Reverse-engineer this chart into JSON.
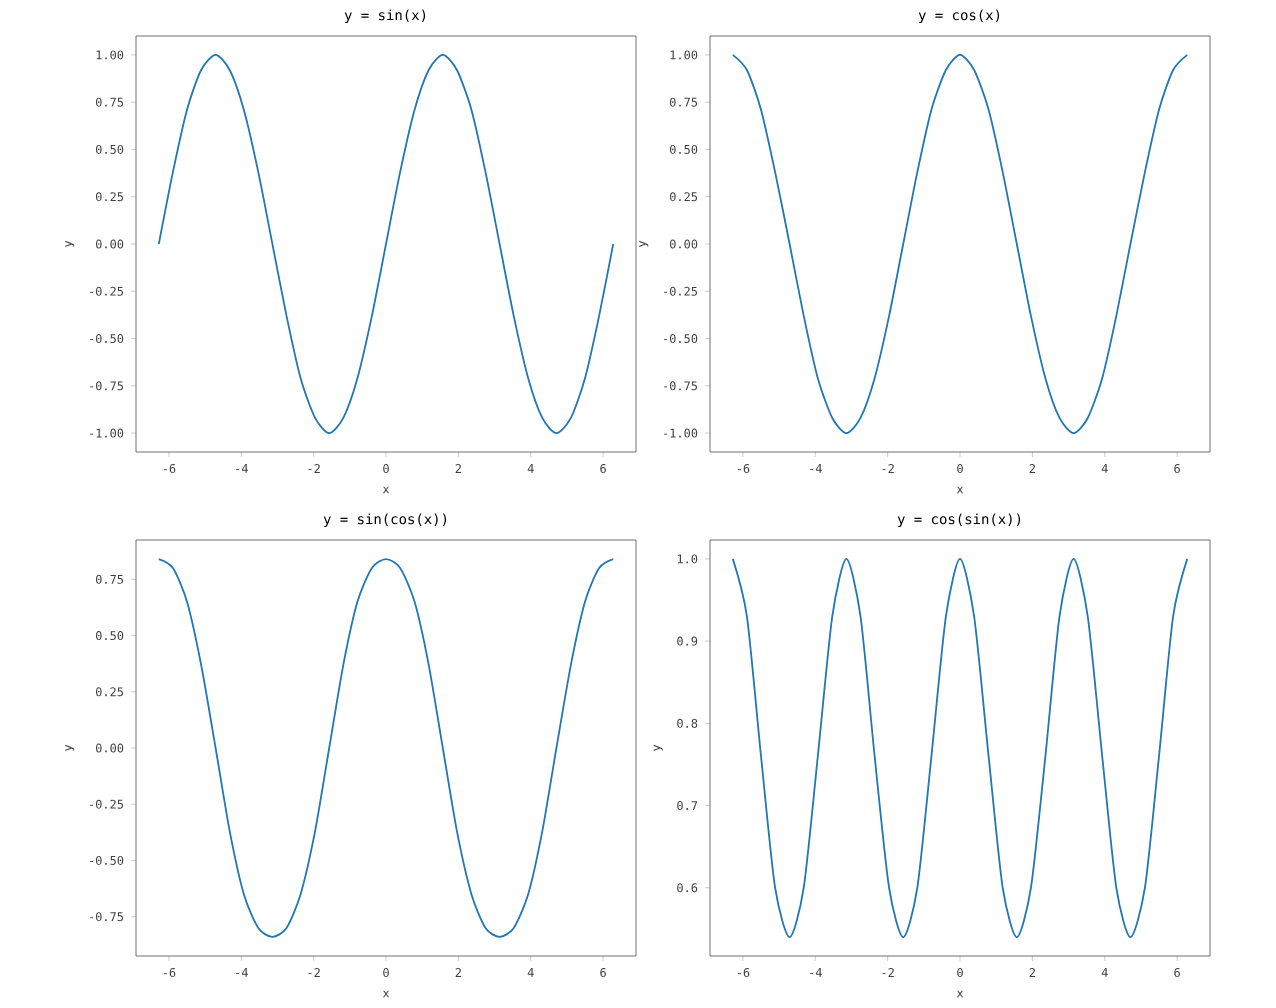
{
  "chart_data": [
    {
      "type": "line",
      "title": "y = sin(x)",
      "xlabel": "x",
      "ylabel": "y",
      "x": [
        -6.28,
        -5.89,
        -5.5,
        -5.11,
        -4.71,
        -4.32,
        -3.93,
        -3.53,
        -3.14,
        -2.75,
        -2.36,
        -1.96,
        -1.57,
        -1.18,
        -0.79,
        -0.39,
        0,
        0.39,
        0.79,
        1.18,
        1.57,
        1.96,
        2.36,
        2.75,
        3.14,
        3.53,
        3.93,
        4.32,
        4.71,
        5.11,
        5.5,
        5.89,
        6.28
      ],
      "series": [
        {
          "color": "#1f77b4",
          "values": [
            0,
            0.38,
            0.71,
            0.92,
            1,
            0.92,
            0.71,
            0.38,
            0,
            -0.38,
            -0.71,
            -0.92,
            -1,
            -0.92,
            -0.71,
            -0.38,
            0,
            0.38,
            0.71,
            0.92,
            1,
            0.92,
            0.71,
            0.38,
            0,
            -0.38,
            -0.71,
            -0.92,
            -1,
            -0.92,
            -0.71,
            -0.38,
            0
          ]
        }
      ],
      "xlim": [
        -6.91,
        6.91
      ],
      "ylim": [
        -1.1,
        1.1
      ],
      "xticks": [
        -6,
        -4,
        -2,
        0,
        2,
        4,
        6
      ],
      "yticks": [
        {
          "value": -1,
          "label": "-1.00"
        },
        {
          "value": -0.75,
          "label": "-0.75"
        },
        {
          "value": -0.5,
          "label": "-0.50"
        },
        {
          "value": -0.25,
          "label": "-0.25"
        },
        {
          "value": 0,
          "label": "0.00"
        },
        {
          "value": 0.25,
          "label": "0.25"
        },
        {
          "value": 0.5,
          "label": "0.50"
        },
        {
          "value": 0.75,
          "label": "0.75"
        },
        {
          "value": 1,
          "label": "1.00"
        }
      ]
    },
    {
      "type": "line",
      "title": "y = cos(x)",
      "xlabel": "x",
      "ylabel": "y",
      "x": [
        -6.28,
        -5.89,
        -5.5,
        -5.11,
        -4.71,
        -4.32,
        -3.93,
        -3.53,
        -3.14,
        -2.75,
        -2.36,
        -1.96,
        -1.57,
        -1.18,
        -0.79,
        -0.39,
        0,
        0.39,
        0.79,
        1.18,
        1.57,
        1.96,
        2.36,
        2.75,
        3.14,
        3.53,
        3.93,
        4.32,
        4.71,
        5.11,
        5.5,
        5.89,
        6.28
      ],
      "series": [
        {
          "color": "#1f77b4",
          "values": [
            1,
            0.92,
            0.71,
            0.38,
            0,
            -0.38,
            -0.71,
            -0.92,
            -1,
            -0.92,
            -0.71,
            -0.38,
            0,
            0.38,
            0.71,
            0.92,
            1,
            0.92,
            0.71,
            0.38,
            0,
            -0.38,
            -0.71,
            -0.92,
            -1,
            -0.92,
            -0.71,
            -0.38,
            0,
            0.38,
            0.71,
            0.92,
            1
          ]
        }
      ],
      "xlim": [
        -6.91,
        6.91
      ],
      "ylim": [
        -1.1,
        1.1
      ],
      "xticks": [
        -6,
        -4,
        -2,
        0,
        2,
        4,
        6
      ],
      "yticks": [
        {
          "value": -1,
          "label": "-1.00"
        },
        {
          "value": -0.75,
          "label": "-0.75"
        },
        {
          "value": -0.5,
          "label": "-0.50"
        },
        {
          "value": -0.25,
          "label": "-0.25"
        },
        {
          "value": 0,
          "label": "0.00"
        },
        {
          "value": 0.25,
          "label": "0.25"
        },
        {
          "value": 0.5,
          "label": "0.50"
        },
        {
          "value": 0.75,
          "label": "0.75"
        },
        {
          "value": 1,
          "label": "1.00"
        }
      ]
    },
    {
      "type": "line",
      "title": "y = sin(cos(x))",
      "xlabel": "x",
      "ylabel": "y",
      "x": [
        -6.28,
        -5.89,
        -5.5,
        -5.11,
        -4.71,
        -4.32,
        -3.93,
        -3.53,
        -3.14,
        -2.75,
        -2.36,
        -1.96,
        -1.57,
        -1.18,
        -0.79,
        -0.39,
        0,
        0.39,
        0.79,
        1.18,
        1.57,
        1.96,
        2.36,
        2.75,
        3.14,
        3.53,
        3.93,
        4.32,
        4.71,
        5.11,
        5.5,
        5.89,
        6.28
      ],
      "series": [
        {
          "color": "#1f77b4",
          "values": [
            0.84,
            0.8,
            0.65,
            0.37,
            0,
            -0.37,
            -0.65,
            -0.8,
            -0.84,
            -0.8,
            -0.65,
            -0.37,
            0,
            0.37,
            0.65,
            0.8,
            0.84,
            0.8,
            0.65,
            0.37,
            0,
            -0.37,
            -0.65,
            -0.8,
            -0.84,
            -0.8,
            -0.65,
            -0.37,
            0,
            0.37,
            0.65,
            0.8,
            0.84
          ]
        }
      ],
      "xlim": [
        -6.91,
        6.91
      ],
      "ylim": [
        -0.925,
        0.925
      ],
      "xticks": [
        -6,
        -4,
        -2,
        0,
        2,
        4,
        6
      ],
      "yticks": [
        {
          "value": -0.75,
          "label": "-0.75"
        },
        {
          "value": -0.5,
          "label": "-0.50"
        },
        {
          "value": -0.25,
          "label": "-0.25"
        },
        {
          "value": 0,
          "label": "0.00"
        },
        {
          "value": 0.25,
          "label": "0.25"
        },
        {
          "value": 0.5,
          "label": "0.50"
        },
        {
          "value": 0.75,
          "label": "0.75"
        }
      ]
    },
    {
      "type": "line",
      "title": "y = cos(sin(x))",
      "xlabel": "x",
      "ylabel": "y",
      "x": [
        -6.28,
        -5.89,
        -5.5,
        -5.11,
        -4.71,
        -4.32,
        -3.93,
        -3.53,
        -3.14,
        -2.75,
        -2.36,
        -1.96,
        -1.57,
        -1.18,
        -0.79,
        -0.39,
        0,
        0.39,
        0.79,
        1.18,
        1.57,
        1.96,
        2.36,
        2.75,
        3.14,
        3.53,
        3.93,
        4.32,
        4.71,
        5.11,
        5.5,
        5.89,
        6.28
      ],
      "series": [
        {
          "color": "#1f77b4",
          "values": [
            1,
            0.93,
            0.76,
            0.6,
            0.54,
            0.6,
            0.76,
            0.93,
            1,
            0.93,
            0.76,
            0.6,
            0.54,
            0.6,
            0.76,
            0.93,
            1,
            0.93,
            0.76,
            0.6,
            0.54,
            0.6,
            0.76,
            0.93,
            1,
            0.93,
            0.76,
            0.6,
            0.54,
            0.6,
            0.76,
            0.93,
            1
          ]
        }
      ],
      "xlim": [
        -6.91,
        6.91
      ],
      "ylim": [
        0.517,
        1.023
      ],
      "xticks": [
        -6,
        -4,
        -2,
        0,
        2,
        4,
        6
      ],
      "yticks": [
        0.6,
        0.7,
        0.8,
        0.9,
        {
          "value": 1,
          "label": "1.0"
        }
      ]
    }
  ]
}
